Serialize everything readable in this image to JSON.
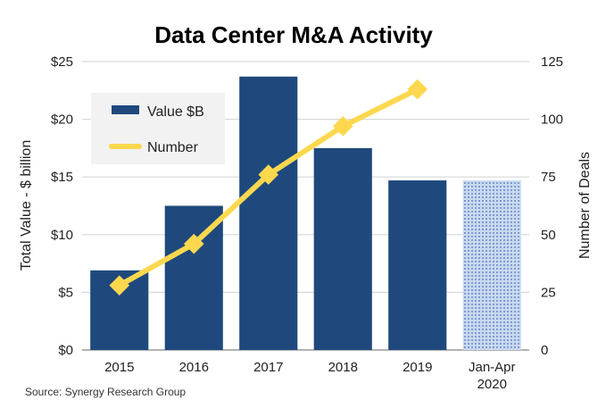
{
  "chart_data": {
    "type": "bar",
    "title": "Data Center M&A Activity",
    "categories": [
      "2015",
      "2016",
      "2017",
      "2018",
      "2019",
      "Jan-Apr|2020"
    ],
    "series": [
      {
        "name": "Value $B",
        "type": "bar",
        "axis": "left",
        "color": "#1f497d",
        "values": [
          6.9,
          12.5,
          23.7,
          17.5,
          14.7,
          14.7
        ],
        "hatched_last": true,
        "hatched_color": "#a8c1e6"
      },
      {
        "name": "Number",
        "type": "line",
        "axis": "right",
        "color": "#fdd84e",
        "values": [
          28,
          46,
          76,
          97,
          113,
          null
        ]
      }
    ],
    "ylabel": "Total Value - $ billion",
    "y2label": "Number of Deals",
    "xlabel": "",
    "ylim": [
      0,
      25
    ],
    "y2lim": [
      0,
      125
    ],
    "yticks": [
      "$0",
      "$5",
      "$10",
      "$15",
      "$20",
      "$25"
    ],
    "y2ticks": [
      "0",
      "25",
      "50",
      "75",
      "100",
      "125"
    ],
    "grid": true,
    "legend": {
      "placement": "top-left",
      "entries": [
        "Value $B",
        "Number"
      ]
    },
    "source": "Source: Synergy Research Group"
  }
}
